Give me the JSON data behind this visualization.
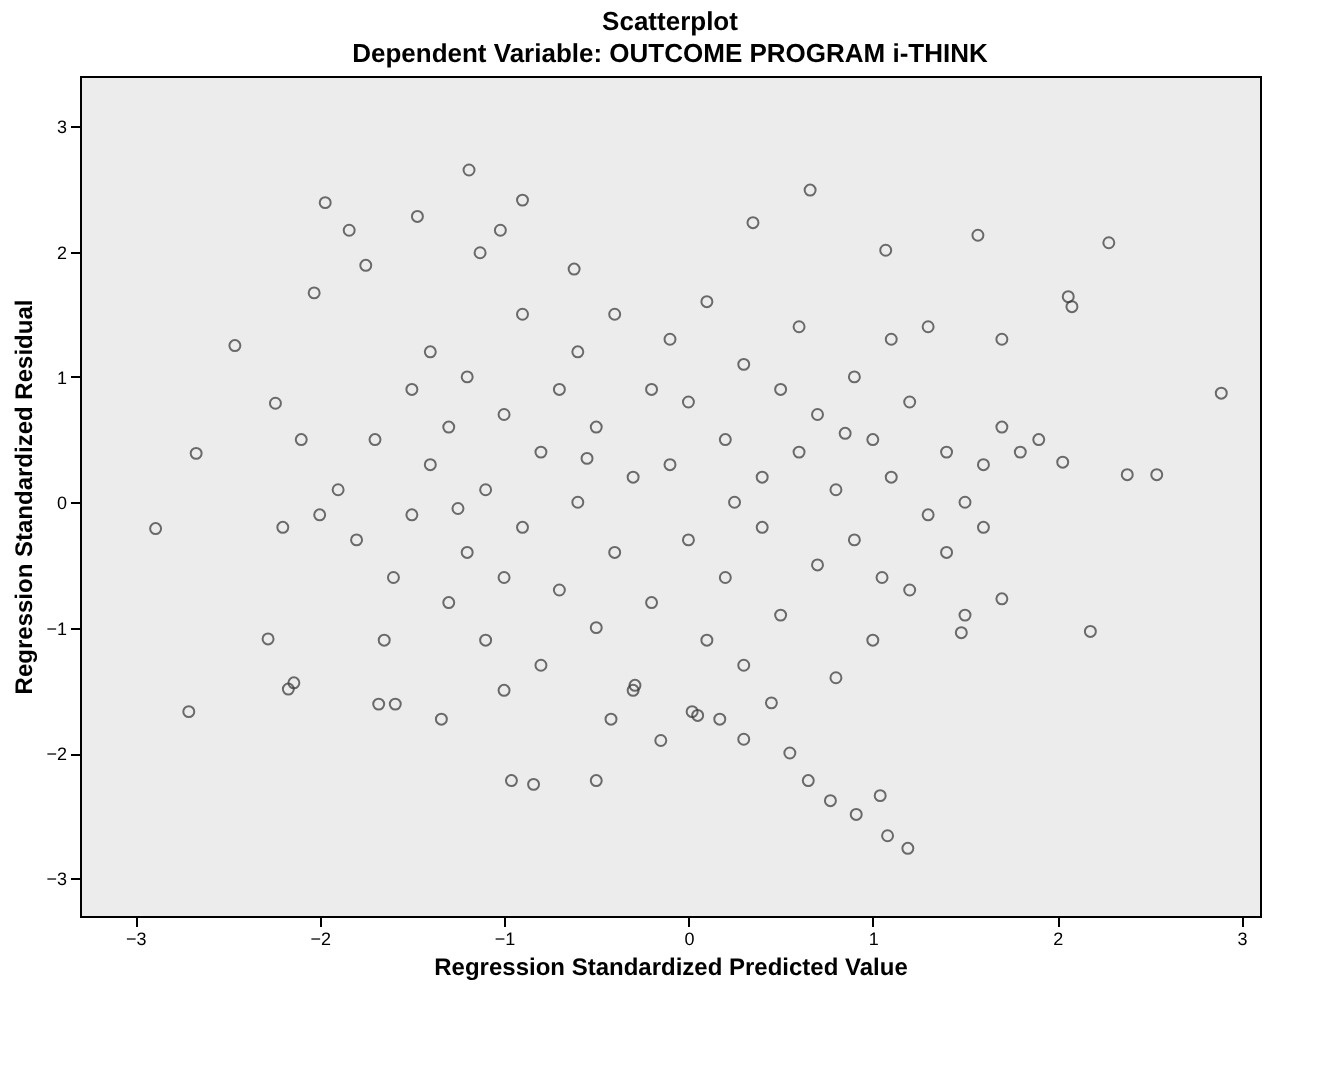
{
  "chart_data": {
    "type": "scatter",
    "title": "Scatterplot",
    "subtitle": "Dependent Variable: OUTCOME PROGRAM i-THINK",
    "xlabel": "Regression Standardized Predicted Value",
    "ylabel": "Regression Standardized Residual",
    "xlim": [
      -3.3,
      3.1
    ],
    "ylim": [
      -3.3,
      3.4
    ],
    "xticks": [
      -3,
      -2,
      -1,
      0,
      1,
      2,
      3
    ],
    "yticks": [
      -3,
      -2,
      -1,
      0,
      1,
      2,
      3
    ],
    "grid": false,
    "marker": "circle",
    "x": [
      -2.89,
      -2.67,
      -2.71,
      -2.46,
      -1.97,
      -2.03,
      -1.84,
      -1.75,
      -2.24,
      -2.28,
      -2.14,
      -2.17,
      -1.68,
      -1.59,
      -1.34,
      -1.47,
      -1.19,
      -1.13,
      -1.02,
      -0.9,
      -0.96,
      -0.84,
      -0.5,
      -0.62,
      0.35,
      0.66,
      1.07,
      1.57,
      2.28,
      2.06,
      2.08,
      2.03,
      2.18,
      2.38,
      2.54,
      2.89,
      1.7,
      1.48,
      1.04,
      1.08,
      1.19,
      0.91,
      0.77,
      0.65,
      0.17,
      0.3,
      0.02,
      -0.29,
      -0.42,
      -1.9,
      -1.8,
      -1.7,
      -1.6,
      -1.5,
      -1.5,
      -1.4,
      -1.4,
      -1.3,
      -1.3,
      -1.2,
      -1.2,
      -1.1,
      -1.1,
      -1.0,
      -1.0,
      -0.9,
      -0.9,
      -0.8,
      -0.8,
      -0.7,
      -0.7,
      -0.6,
      -0.6,
      -0.5,
      -0.5,
      -0.4,
      -0.4,
      -0.3,
      -0.3,
      -0.2,
      -0.2,
      -0.1,
      -0.1,
      0.0,
      0.0,
      0.1,
      0.1,
      0.2,
      0.2,
      0.3,
      0.3,
      0.4,
      0.4,
      0.5,
      0.5,
      0.6,
      0.6,
      0.7,
      0.7,
      0.8,
      0.8,
      0.9,
      0.9,
      1.0,
      1.0,
      1.1,
      1.1,
      1.2,
      1.2,
      1.3,
      1.3,
      1.4,
      1.4,
      1.5,
      1.5,
      1.6,
      1.6,
      1.7,
      1.7,
      1.8,
      1.9,
      -2.1,
      -2.2,
      -2.0,
      0.05,
      -0.15,
      0.45,
      0.55,
      -1.0,
      -1.65,
      0.25,
      -0.55,
      0.85,
      1.05,
      -1.25
    ],
    "values": [
      -0.21,
      0.39,
      -1.67,
      1.25,
      2.39,
      1.67,
      2.17,
      1.89,
      0.79,
      -1.09,
      -1.44,
      -1.49,
      -1.61,
      -1.61,
      -1.73,
      2.28,
      2.65,
      1.99,
      2.17,
      2.41,
      -2.22,
      -2.25,
      -2.22,
      1.86,
      2.23,
      2.49,
      2.01,
      2.13,
      2.07,
      1.64,
      1.56,
      0.32,
      -1.03,
      0.22,
      0.22,
      0.87,
      -0.77,
      -1.04,
      -2.34,
      -2.66,
      -2.76,
      -2.49,
      -2.38,
      -2.22,
      -1.73,
      -1.89,
      -1.67,
      -1.46,
      -1.73,
      0.1,
      -0.3,
      0.5,
      -0.6,
      0.9,
      -0.1,
      1.2,
      0.3,
      -0.8,
      0.6,
      -0.4,
      1.0,
      0.1,
      -1.1,
      0.7,
      -0.6,
      1.5,
      -0.2,
      0.4,
      -1.3,
      0.9,
      -0.7,
      1.2,
      0.0,
      -1.0,
      0.6,
      1.5,
      -0.4,
      0.2,
      -1.5,
      0.9,
      -0.8,
      1.3,
      0.3,
      -0.3,
      0.8,
      -1.1,
      1.6,
      0.5,
      -0.6,
      1.1,
      -1.3,
      0.2,
      -0.2,
      0.9,
      -0.9,
      1.4,
      0.4,
      -0.5,
      0.7,
      -1.4,
      0.1,
      1.0,
      -0.3,
      0.5,
      -1.1,
      1.3,
      0.2,
      -0.7,
      0.8,
      -0.1,
      1.4,
      0.4,
      -0.4,
      0.0,
      -0.9,
      0.3,
      -0.2,
      1.3,
      0.6,
      0.4,
      0.5,
      0.5,
      -0.2,
      -0.1,
      -1.7,
      -1.9,
      -1.6,
      -2.0,
      -1.5,
      -1.1,
      0.0,
      0.35,
      0.55,
      -0.6,
      -0.05
    ],
    "color": "#333333"
  }
}
